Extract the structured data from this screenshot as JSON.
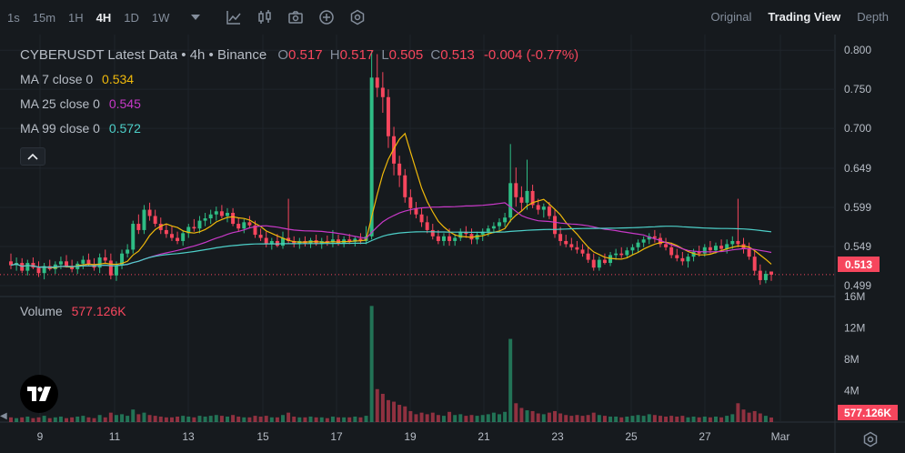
{
  "toolbar": {
    "intervals": [
      "1s",
      "15m",
      "1H",
      "4H",
      "1D",
      "1W"
    ],
    "active_interval": "4H",
    "views": [
      "Original",
      "Trading View",
      "Depth"
    ],
    "active_view": "Trading View"
  },
  "legend": {
    "title": "CYBERUSDT Latest Data • 4h • Binance",
    "open_label": "O",
    "open": "0.517",
    "high_label": "H",
    "high": "0.517",
    "low_label": "L",
    "low": "0.505",
    "close_label": "C",
    "close": "0.513",
    "change": "-0.004 (-0.77%)",
    "ma7_label": "MA 7 close 0",
    "ma7_value": "0.534",
    "ma25_label": "MA 25 close 0",
    "ma25_value": "0.545",
    "ma99_label": "MA 99 close 0",
    "ma99_value": "0.572",
    "volume_label": "Volume",
    "volume_value": "577.126K"
  },
  "current_price_tag": "0.513",
  "current_volume_tag": "577.126K",
  "colors": {
    "up": "#2ebd85",
    "down": "#f6465d",
    "ma7": "#f0b90b",
    "ma25": "#c739c7",
    "ma99": "#4dd0c9",
    "background": "#161a1e"
  },
  "chart_data": {
    "type": "candlestick",
    "price_axis": {
      "ticks": [
        "0.800",
        "0.750",
        "0.700",
        "0.649",
        "0.599",
        "0.549",
        "0.499"
      ],
      "range": [
        0.485,
        0.82
      ]
    },
    "volume_axis": {
      "ticks": [
        "16M",
        "12M",
        "8M",
        "4M"
      ],
      "range": [
        0,
        16
      ]
    },
    "x_axis": {
      "ticks": [
        "9",
        "11",
        "13",
        "15",
        "17",
        "19",
        "21",
        "23",
        "25",
        "27",
        "Mar"
      ]
    },
    "candles": [
      {
        "o": 0.53,
        "h": 0.54,
        "l": 0.52,
        "c": 0.525,
        "v": 0.6
      },
      {
        "o": 0.525,
        "h": 0.535,
        "l": 0.518,
        "c": 0.528,
        "v": 0.5
      },
      {
        "o": 0.528,
        "h": 0.534,
        "l": 0.515,
        "c": 0.518,
        "v": 0.6
      },
      {
        "o": 0.518,
        "h": 0.532,
        "l": 0.512,
        "c": 0.528,
        "v": 0.7
      },
      {
        "o": 0.528,
        "h": 0.535,
        "l": 0.52,
        "c": 0.522,
        "v": 0.5
      },
      {
        "o": 0.522,
        "h": 0.53,
        "l": 0.51,
        "c": 0.515,
        "v": 0.6
      },
      {
        "o": 0.515,
        "h": 0.528,
        "l": 0.507,
        "c": 0.524,
        "v": 0.8
      },
      {
        "o": 0.524,
        "h": 0.532,
        "l": 0.518,
        "c": 0.52,
        "v": 0.5
      },
      {
        "o": 0.52,
        "h": 0.53,
        "l": 0.514,
        "c": 0.526,
        "v": 0.6
      },
      {
        "o": 0.526,
        "h": 0.536,
        "l": 0.52,
        "c": 0.53,
        "v": 0.7
      },
      {
        "o": 0.53,
        "h": 0.538,
        "l": 0.522,
        "c": 0.524,
        "v": 0.5
      },
      {
        "o": 0.524,
        "h": 0.532,
        "l": 0.516,
        "c": 0.52,
        "v": 0.6
      },
      {
        "o": 0.52,
        "h": 0.53,
        "l": 0.514,
        "c": 0.527,
        "v": 0.7
      },
      {
        "o": 0.527,
        "h": 0.537,
        "l": 0.52,
        "c": 0.532,
        "v": 0.8
      },
      {
        "o": 0.532,
        "h": 0.54,
        "l": 0.524,
        "c": 0.526,
        "v": 0.6
      },
      {
        "o": 0.526,
        "h": 0.534,
        "l": 0.518,
        "c": 0.522,
        "v": 0.5
      },
      {
        "o": 0.522,
        "h": 0.54,
        "l": 0.515,
        "c": 0.535,
        "v": 0.9
      },
      {
        "o": 0.535,
        "h": 0.545,
        "l": 0.528,
        "c": 0.531,
        "v": 0.6
      },
      {
        "o": 0.531,
        "h": 0.54,
        "l": 0.507,
        "c": 0.512,
        "v": 1.2
      },
      {
        "o": 0.512,
        "h": 0.53,
        "l": 0.505,
        "c": 0.525,
        "v": 0.9
      },
      {
        "o": 0.525,
        "h": 0.545,
        "l": 0.52,
        "c": 0.54,
        "v": 1.0
      },
      {
        "o": 0.54,
        "h": 0.552,
        "l": 0.535,
        "c": 0.545,
        "v": 0.8
      },
      {
        "o": 0.545,
        "h": 0.582,
        "l": 0.54,
        "c": 0.578,
        "v": 1.6
      },
      {
        "o": 0.578,
        "h": 0.59,
        "l": 0.565,
        "c": 0.57,
        "v": 1.0
      },
      {
        "o": 0.57,
        "h": 0.602,
        "l": 0.565,
        "c": 0.596,
        "v": 1.2
      },
      {
        "o": 0.596,
        "h": 0.605,
        "l": 0.582,
        "c": 0.588,
        "v": 0.9
      },
      {
        "o": 0.588,
        "h": 0.596,
        "l": 0.574,
        "c": 0.578,
        "v": 0.8
      },
      {
        "o": 0.578,
        "h": 0.586,
        "l": 0.565,
        "c": 0.57,
        "v": 0.7
      },
      {
        "o": 0.57,
        "h": 0.578,
        "l": 0.56,
        "c": 0.565,
        "v": 0.6
      },
      {
        "o": 0.565,
        "h": 0.575,
        "l": 0.556,
        "c": 0.56,
        "v": 0.6
      },
      {
        "o": 0.56,
        "h": 0.568,
        "l": 0.552,
        "c": 0.556,
        "v": 0.7
      },
      {
        "o": 0.556,
        "h": 0.57,
        "l": 0.55,
        "c": 0.566,
        "v": 0.8
      },
      {
        "o": 0.566,
        "h": 0.578,
        "l": 0.56,
        "c": 0.574,
        "v": 0.7
      },
      {
        "o": 0.574,
        "h": 0.584,
        "l": 0.568,
        "c": 0.572,
        "v": 0.6
      },
      {
        "o": 0.572,
        "h": 0.588,
        "l": 0.566,
        "c": 0.582,
        "v": 0.8
      },
      {
        "o": 0.582,
        "h": 0.592,
        "l": 0.575,
        "c": 0.585,
        "v": 0.7
      },
      {
        "o": 0.585,
        "h": 0.596,
        "l": 0.578,
        "c": 0.59,
        "v": 0.8
      },
      {
        "o": 0.59,
        "h": 0.6,
        "l": 0.582,
        "c": 0.594,
        "v": 0.9
      },
      {
        "o": 0.594,
        "h": 0.602,
        "l": 0.585,
        "c": 0.588,
        "v": 0.8
      },
      {
        "o": 0.588,
        "h": 0.598,
        "l": 0.58,
        "c": 0.592,
        "v": 0.7
      },
      {
        "o": 0.592,
        "h": 0.598,
        "l": 0.575,
        "c": 0.578,
        "v": 0.9
      },
      {
        "o": 0.578,
        "h": 0.586,
        "l": 0.568,
        "c": 0.572,
        "v": 0.7
      },
      {
        "o": 0.572,
        "h": 0.584,
        "l": 0.566,
        "c": 0.58,
        "v": 0.6
      },
      {
        "o": 0.58,
        "h": 0.588,
        "l": 0.572,
        "c": 0.576,
        "v": 0.6
      },
      {
        "o": 0.576,
        "h": 0.582,
        "l": 0.56,
        "c": 0.564,
        "v": 0.8
      },
      {
        "o": 0.564,
        "h": 0.572,
        "l": 0.556,
        "c": 0.56,
        "v": 0.7
      },
      {
        "o": 0.56,
        "h": 0.568,
        "l": 0.548,
        "c": 0.552,
        "v": 0.8
      },
      {
        "o": 0.552,
        "h": 0.56,
        "l": 0.545,
        "c": 0.556,
        "v": 0.6
      },
      {
        "o": 0.556,
        "h": 0.565,
        "l": 0.548,
        "c": 0.55,
        "v": 0.6
      },
      {
        "o": 0.55,
        "h": 0.568,
        "l": 0.546,
        "c": 0.56,
        "v": 0.9
      },
      {
        "o": 0.56,
        "h": 0.61,
        "l": 0.552,
        "c": 0.556,
        "v": 1.2
      },
      {
        "o": 0.556,
        "h": 0.562,
        "l": 0.548,
        "c": 0.552,
        "v": 0.7
      },
      {
        "o": 0.552,
        "h": 0.56,
        "l": 0.546,
        "c": 0.556,
        "v": 0.6
      },
      {
        "o": 0.556,
        "h": 0.562,
        "l": 0.549,
        "c": 0.553,
        "v": 0.6
      },
      {
        "o": 0.553,
        "h": 0.56,
        "l": 0.547,
        "c": 0.557,
        "v": 0.7
      },
      {
        "o": 0.557,
        "h": 0.564,
        "l": 0.55,
        "c": 0.552,
        "v": 0.6
      },
      {
        "o": 0.552,
        "h": 0.56,
        "l": 0.546,
        "c": 0.556,
        "v": 0.6
      },
      {
        "o": 0.556,
        "h": 0.563,
        "l": 0.55,
        "c": 0.554,
        "v": 0.5
      },
      {
        "o": 0.554,
        "h": 0.57,
        "l": 0.548,
        "c": 0.558,
        "v": 0.7
      },
      {
        "o": 0.558,
        "h": 0.564,
        "l": 0.55,
        "c": 0.553,
        "v": 0.6
      },
      {
        "o": 0.553,
        "h": 0.562,
        "l": 0.548,
        "c": 0.558,
        "v": 0.6
      },
      {
        "o": 0.558,
        "h": 0.565,
        "l": 0.552,
        "c": 0.555,
        "v": 0.6
      },
      {
        "o": 0.555,
        "h": 0.562,
        "l": 0.549,
        "c": 0.559,
        "v": 0.7
      },
      {
        "o": 0.559,
        "h": 0.566,
        "l": 0.552,
        "c": 0.556,
        "v": 0.6
      },
      {
        "o": 0.556,
        "h": 0.575,
        "l": 0.552,
        "c": 0.562,
        "v": 0.8
      },
      {
        "o": 0.562,
        "h": 0.8,
        "l": 0.558,
        "c": 0.765,
        "v": 14.8
      },
      {
        "o": 0.765,
        "h": 0.795,
        "l": 0.74,
        "c": 0.752,
        "v": 4.2
      },
      {
        "o": 0.752,
        "h": 0.772,
        "l": 0.72,
        "c": 0.74,
        "v": 3.6
      },
      {
        "o": 0.74,
        "h": 0.75,
        "l": 0.675,
        "c": 0.69,
        "v": 2.8
      },
      {
        "o": 0.69,
        "h": 0.702,
        "l": 0.64,
        "c": 0.655,
        "v": 2.6
      },
      {
        "o": 0.655,
        "h": 0.665,
        "l": 0.625,
        "c": 0.64,
        "v": 2.2
      },
      {
        "o": 0.64,
        "h": 0.648,
        "l": 0.605,
        "c": 0.612,
        "v": 2.0
      },
      {
        "o": 0.612,
        "h": 0.622,
        "l": 0.59,
        "c": 0.598,
        "v": 1.4
      },
      {
        "o": 0.598,
        "h": 0.606,
        "l": 0.585,
        "c": 0.59,
        "v": 1.0
      },
      {
        "o": 0.59,
        "h": 0.598,
        "l": 0.574,
        "c": 0.58,
        "v": 1.2
      },
      {
        "o": 0.58,
        "h": 0.588,
        "l": 0.566,
        "c": 0.57,
        "v": 1.0
      },
      {
        "o": 0.57,
        "h": 0.578,
        "l": 0.558,
        "c": 0.562,
        "v": 1.2
      },
      {
        "o": 0.562,
        "h": 0.57,
        "l": 0.552,
        "c": 0.556,
        "v": 0.9
      },
      {
        "o": 0.556,
        "h": 0.566,
        "l": 0.55,
        "c": 0.562,
        "v": 0.8
      },
      {
        "o": 0.562,
        "h": 0.572,
        "l": 0.55,
        "c": 0.556,
        "v": 1.3
      },
      {
        "o": 0.556,
        "h": 0.565,
        "l": 0.55,
        "c": 0.56,
        "v": 0.9
      },
      {
        "o": 0.56,
        "h": 0.572,
        "l": 0.556,
        "c": 0.568,
        "v": 1.0
      },
      {
        "o": 0.568,
        "h": 0.575,
        "l": 0.56,
        "c": 0.565,
        "v": 0.8
      },
      {
        "o": 0.565,
        "h": 0.572,
        "l": 0.552,
        "c": 0.558,
        "v": 0.9
      },
      {
        "o": 0.558,
        "h": 0.568,
        "l": 0.552,
        "c": 0.564,
        "v": 0.8
      },
      {
        "o": 0.564,
        "h": 0.572,
        "l": 0.556,
        "c": 0.568,
        "v": 0.9
      },
      {
        "o": 0.568,
        "h": 0.576,
        "l": 0.562,
        "c": 0.572,
        "v": 1.0
      },
      {
        "o": 0.572,
        "h": 0.58,
        "l": 0.566,
        "c": 0.575,
        "v": 1.2
      },
      {
        "o": 0.575,
        "h": 0.585,
        "l": 0.57,
        "c": 0.58,
        "v": 1.0
      },
      {
        "o": 0.58,
        "h": 0.592,
        "l": 0.574,
        "c": 0.586,
        "v": 1.3
      },
      {
        "o": 0.586,
        "h": 0.68,
        "l": 0.58,
        "c": 0.63,
        "v": 10.6
      },
      {
        "o": 0.63,
        "h": 0.65,
        "l": 0.6,
        "c": 0.612,
        "v": 2.4
      },
      {
        "o": 0.612,
        "h": 0.626,
        "l": 0.595,
        "c": 0.605,
        "v": 1.8
      },
      {
        "o": 0.605,
        "h": 0.66,
        "l": 0.596,
        "c": 0.62,
        "v": 1.5
      },
      {
        "o": 0.62,
        "h": 0.628,
        "l": 0.598,
        "c": 0.602,
        "v": 1.4
      },
      {
        "o": 0.602,
        "h": 0.61,
        "l": 0.59,
        "c": 0.596,
        "v": 1.1
      },
      {
        "o": 0.596,
        "h": 0.604,
        "l": 0.586,
        "c": 0.6,
        "v": 1.0
      },
      {
        "o": 0.6,
        "h": 0.606,
        "l": 0.584,
        "c": 0.588,
        "v": 1.2
      },
      {
        "o": 0.588,
        "h": 0.596,
        "l": 0.56,
        "c": 0.565,
        "v": 1.4
      },
      {
        "o": 0.565,
        "h": 0.574,
        "l": 0.55,
        "c": 0.556,
        "v": 1.1
      },
      {
        "o": 0.556,
        "h": 0.564,
        "l": 0.548,
        "c": 0.552,
        "v": 0.9
      },
      {
        "o": 0.552,
        "h": 0.56,
        "l": 0.544,
        "c": 0.548,
        "v": 0.8
      },
      {
        "o": 0.548,
        "h": 0.556,
        "l": 0.54,
        "c": 0.545,
        "v": 0.9
      },
      {
        "o": 0.545,
        "h": 0.552,
        "l": 0.536,
        "c": 0.54,
        "v": 0.8
      },
      {
        "o": 0.54,
        "h": 0.548,
        "l": 0.528,
        "c": 0.532,
        "v": 0.9
      },
      {
        "o": 0.532,
        "h": 0.54,
        "l": 0.518,
        "c": 0.522,
        "v": 1.2
      },
      {
        "o": 0.522,
        "h": 0.536,
        "l": 0.518,
        "c": 0.532,
        "v": 0.9
      },
      {
        "o": 0.532,
        "h": 0.54,
        "l": 0.526,
        "c": 0.528,
        "v": 0.8
      },
      {
        "o": 0.528,
        "h": 0.542,
        "l": 0.524,
        "c": 0.538,
        "v": 0.7
      },
      {
        "o": 0.538,
        "h": 0.546,
        "l": 0.532,
        "c": 0.54,
        "v": 0.7
      },
      {
        "o": 0.54,
        "h": 0.548,
        "l": 0.534,
        "c": 0.538,
        "v": 0.6
      },
      {
        "o": 0.538,
        "h": 0.548,
        "l": 0.534,
        "c": 0.544,
        "v": 0.7
      },
      {
        "o": 0.544,
        "h": 0.552,
        "l": 0.538,
        "c": 0.548,
        "v": 0.8
      },
      {
        "o": 0.548,
        "h": 0.558,
        "l": 0.542,
        "c": 0.554,
        "v": 0.9
      },
      {
        "o": 0.554,
        "h": 0.562,
        "l": 0.548,
        "c": 0.558,
        "v": 0.8
      },
      {
        "o": 0.558,
        "h": 0.566,
        "l": 0.552,
        "c": 0.562,
        "v": 1.0
      },
      {
        "o": 0.562,
        "h": 0.57,
        "l": 0.554,
        "c": 0.56,
        "v": 0.9
      },
      {
        "o": 0.56,
        "h": 0.566,
        "l": 0.548,
        "c": 0.552,
        "v": 0.8
      },
      {
        "o": 0.552,
        "h": 0.56,
        "l": 0.544,
        "c": 0.548,
        "v": 0.7
      },
      {
        "o": 0.548,
        "h": 0.554,
        "l": 0.534,
        "c": 0.538,
        "v": 0.8
      },
      {
        "o": 0.538,
        "h": 0.546,
        "l": 0.53,
        "c": 0.534,
        "v": 0.7
      },
      {
        "o": 0.534,
        "h": 0.542,
        "l": 0.525,
        "c": 0.53,
        "v": 0.8
      },
      {
        "o": 0.53,
        "h": 0.54,
        "l": 0.522,
        "c": 0.536,
        "v": 0.6
      },
      {
        "o": 0.536,
        "h": 0.546,
        "l": 0.53,
        "c": 0.542,
        "v": 0.7
      },
      {
        "o": 0.542,
        "h": 0.55,
        "l": 0.536,
        "c": 0.54,
        "v": 0.6
      },
      {
        "o": 0.54,
        "h": 0.552,
        "l": 0.536,
        "c": 0.548,
        "v": 0.7
      },
      {
        "o": 0.548,
        "h": 0.556,
        "l": 0.54,
        "c": 0.544,
        "v": 0.6
      },
      {
        "o": 0.544,
        "h": 0.554,
        "l": 0.54,
        "c": 0.55,
        "v": 0.7
      },
      {
        "o": 0.55,
        "h": 0.558,
        "l": 0.544,
        "c": 0.546,
        "v": 0.6
      },
      {
        "o": 0.546,
        "h": 0.558,
        "l": 0.54,
        "c": 0.552,
        "v": 0.8
      },
      {
        "o": 0.552,
        "h": 0.562,
        "l": 0.546,
        "c": 0.556,
        "v": 1.0
      },
      {
        "o": 0.556,
        "h": 0.61,
        "l": 0.548,
        "c": 0.552,
        "v": 2.4
      },
      {
        "o": 0.552,
        "h": 0.56,
        "l": 0.54,
        "c": 0.546,
        "v": 1.6
      },
      {
        "o": 0.546,
        "h": 0.554,
        "l": 0.532,
        "c": 0.536,
        "v": 1.2
      },
      {
        "o": 0.536,
        "h": 0.544,
        "l": 0.512,
        "c": 0.518,
        "v": 1.4
      },
      {
        "o": 0.518,
        "h": 0.526,
        "l": 0.5,
        "c": 0.506,
        "v": 1.1
      },
      {
        "o": 0.506,
        "h": 0.518,
        "l": 0.502,
        "c": 0.514,
        "v": 0.8
      },
      {
        "o": 0.517,
        "h": 0.517,
        "l": 0.505,
        "c": 0.513,
        "v": 0.58
      }
    ]
  }
}
